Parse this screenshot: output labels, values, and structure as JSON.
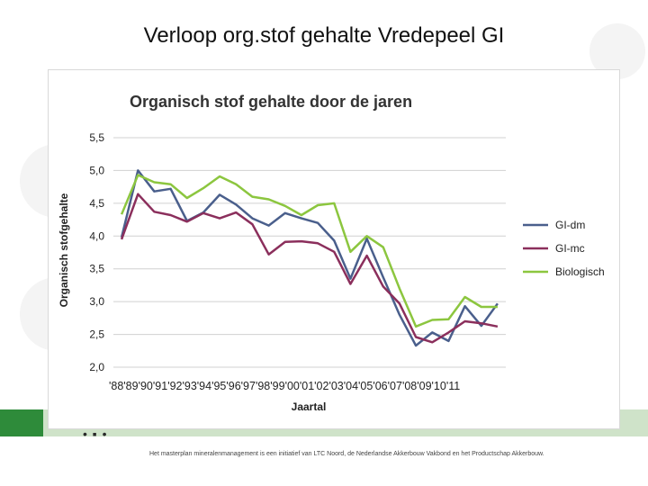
{
  "slide": {
    "title": "Verloop org.stof gehalte Vredepeel GI",
    "footer_text": "Het masterplan mineralenmanagement is een initiatief van LTC Noord, de Nederlandse Akkerbouw Vakbond en het Productschap Akkerbouw.",
    "footer_dots": "• ▪ •",
    "colors": {
      "green_band": "#cfe3c9",
      "green_dark": "#2e8b3a"
    }
  },
  "chart_data": {
    "type": "line",
    "title": "Organisch stof gehalte door de jaren",
    "xlabel": "Jaartal",
    "ylabel": "Organisch stofgehalte",
    "ylim": [
      2.0,
      5.5
    ],
    "yticks": [
      "5,5",
      "5,0",
      "4,5",
      "4,0",
      "3,5",
      "3,0",
      "2,5",
      "2,0"
    ],
    "categories": [
      "'88",
      "'89",
      "'90",
      "'91",
      "'92",
      "'93",
      "'94",
      "'95",
      "'96",
      "'97",
      "'98",
      "'99",
      "'00",
      "'01",
      "'02",
      "'03",
      "'04",
      "'05",
      "'06",
      "'07",
      "'08",
      "'09",
      "'10",
      "'11"
    ],
    "grid": true,
    "legend": "right",
    "series": [
      {
        "name": "GI-dm",
        "color": "#4a5f8c",
        "values": [
          3.98,
          5.0,
          4.68,
          4.72,
          4.23,
          4.36,
          4.63,
          4.48,
          4.27,
          4.16,
          4.35,
          4.27,
          4.2,
          3.93,
          3.35,
          3.96,
          3.37,
          2.8,
          2.33,
          2.53,
          2.4,
          2.93,
          2.63,
          2.97
        ]
      },
      {
        "name": "GI-mc",
        "color": "#8b2f5c",
        "values": [
          3.95,
          4.64,
          4.37,
          4.32,
          4.22,
          4.35,
          4.27,
          4.36,
          4.18,
          3.72,
          3.91,
          3.92,
          3.89,
          3.76,
          3.27,
          3.7,
          3.23,
          2.97,
          2.46,
          2.38,
          2.53,
          2.7,
          2.67,
          2.62
        ]
      },
      {
        "name": "Biologisch",
        "color": "#8cc63f",
        "values": [
          4.33,
          4.93,
          4.82,
          4.79,
          4.58,
          4.73,
          4.91,
          4.79,
          4.6,
          4.56,
          4.46,
          4.32,
          4.47,
          4.5,
          3.76,
          4.0,
          3.83,
          3.2,
          2.62,
          2.72,
          2.73,
          3.07,
          2.92,
          2.92
        ]
      }
    ]
  }
}
